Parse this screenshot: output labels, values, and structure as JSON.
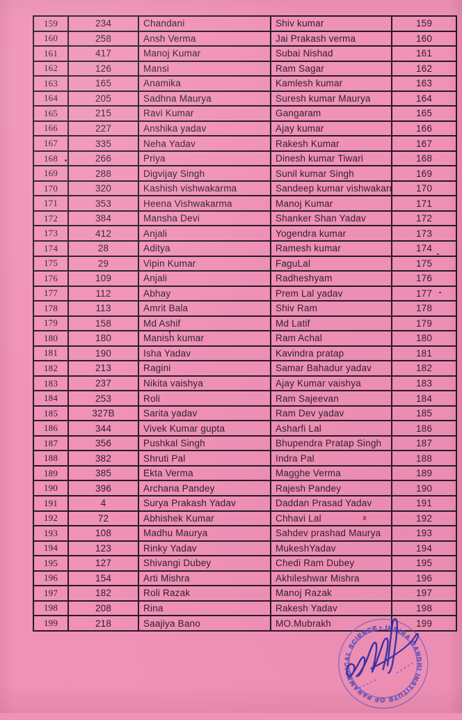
{
  "page": {
    "background_color": "#f091b6",
    "border_color": "#241a26",
    "text_color": "#2b1d2e",
    "type": "scanned pink roll list page"
  },
  "table": {
    "columns": [
      "serial-number",
      "roll-number",
      "candidate-name",
      "father-name",
      "serial-number-repeat"
    ],
    "rows": [
      [
        "159",
        "234",
        "Chandani",
        "Shiv kumar",
        "159"
      ],
      [
        "160",
        "258",
        "Ansh Verma",
        "Jai Prakash verma",
        "160"
      ],
      [
        "161",
        "417",
        "Manoj Kumar",
        "Subai Nishad",
        "161"
      ],
      [
        "162",
        "126",
        "Mansi",
        "Ram Sagar",
        "162"
      ],
      [
        "163",
        "165",
        "Anamika",
        "Kamlesh kumar",
        "163"
      ],
      [
        "164",
        "205",
        "Sadhna Maurya",
        "Suresh kumar Maurya",
        "164"
      ],
      [
        "165",
        "215",
        "Ravi Kumar",
        "Gangaram",
        "165"
      ],
      [
        "166",
        "227",
        "Anshika yadav",
        "Ajay kumar",
        "166"
      ],
      [
        "167",
        "335",
        "Neha Yadav",
        "Rakesh Kumar",
        "167"
      ],
      [
        "168",
        "266",
        "Priya",
        "Dinesh kumar Tiwari",
        "168"
      ],
      [
        "169",
        "288",
        "Digvijay Singh",
        "Sunil kumar Singh",
        "169"
      ],
      [
        "170",
        "320",
        "Kashish  vishwakarma",
        "Sandeep kumar vishwakarn",
        "170"
      ],
      [
        "171",
        "353",
        "Heena  Vishwakarma",
        "Manoj Kumar",
        "171"
      ],
      [
        "172",
        "384",
        "Mansha Devi",
        "Shanker Shan Yadav",
        "172"
      ],
      [
        "173",
        "412",
        "Anjali",
        "Yogendra kumar",
        "173"
      ],
      [
        "174",
        "28",
        "Aditya",
        "Ramesh kumar",
        "174"
      ],
      [
        "175",
        "29",
        "Vipin Kumar",
        "FaguLal",
        "175"
      ],
      [
        "176",
        "109",
        "Anjali",
        "Radheshyam",
        "176"
      ],
      [
        "177",
        "112",
        "Abhay",
        "Prem Lal yadav",
        "177"
      ],
      [
        "178",
        "113",
        "Amrit Bala",
        "Shiv Ram",
        "178"
      ],
      [
        "179",
        "158",
        "Md Ashif",
        "Md Latif",
        "179"
      ],
      [
        "180",
        "180",
        "Manish kumar",
        "Ram Achal",
        "180"
      ],
      [
        "181",
        "190",
        "Isha Yadav",
        "Kavindra pratap",
        "181"
      ],
      [
        "182",
        "213",
        "Ragini",
        "Samar Bahadur yadav",
        "182"
      ],
      [
        "183",
        "237",
        "Nikita vaishya",
        "Ajay Kumar vaishya",
        "183"
      ],
      [
        "184",
        "253",
        "Roli",
        "Ram Sajeevan",
        "184"
      ],
      [
        "185",
        "327B",
        "Sarita yadav",
        "Ram Dev yadav",
        "185"
      ],
      [
        "186",
        "344",
        "Vivek Kumar gupta",
        "Asharfi Lal",
        "186"
      ],
      [
        "187",
        "356",
        "Pushkal Singh",
        "Bhupendra Pratap Singh",
        "187"
      ],
      [
        "188",
        "382",
        "Shruti Pal",
        "Indra Pal",
        "188"
      ],
      [
        "189",
        "385",
        "Ekta Verma",
        "Magghe Verma",
        "189"
      ],
      [
        "190",
        "396",
        "Archana Pandey",
        "Rajesh Pandey",
        "190"
      ],
      [
        "191",
        "4",
        "Surya Prakash Yadav",
        "Daddan Prasad Yadav",
        "191"
      ],
      [
        "192",
        "72",
        "Abhishek Kumar",
        "Chhavi Lal",
        "192"
      ],
      [
        "193",
        "108",
        "Madhu Maurya",
        "Sahdev prashad Maurya",
        "193"
      ],
      [
        "194",
        "123",
        "Rinky Yadav",
        "MukeshYadav",
        "194"
      ],
      [
        "195",
        "127",
        "Shivangi Dubey",
        "Chedi Ram Dubey",
        "195"
      ],
      [
        "196",
        "154",
        "Arti Mishra",
        "Akhileshwar Mishra",
        "196"
      ],
      [
        "197",
        "182",
        "Roli Razak",
        "Manoj Razak",
        "197"
      ],
      [
        "198",
        "208",
        "Rina",
        "Rakesh Yadav",
        "198"
      ],
      [
        "199",
        "218",
        "Saajiya Bano",
        "MO.Mubrakh",
        "199"
      ]
    ]
  },
  "stamp": {
    "ring_text": "• INDIRA GANDHI INSTITUTE OF PARAMEDICAL SCIENCES •",
    "ink_color": "#6a58c0",
    "signature_color": "#2a2aa6"
  }
}
